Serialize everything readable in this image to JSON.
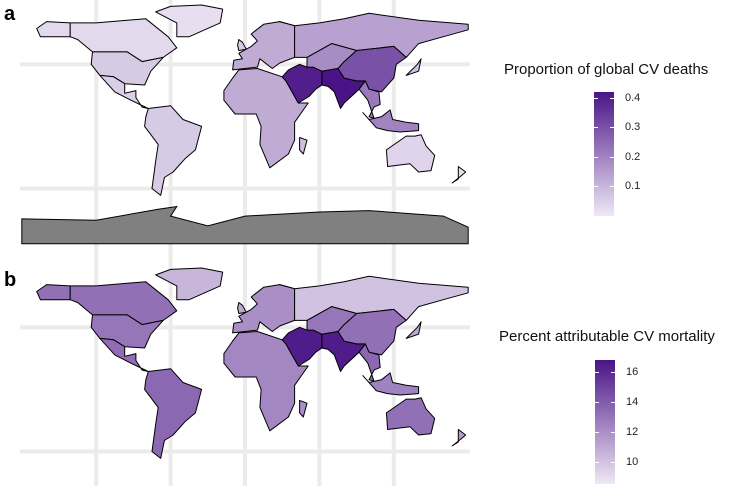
{
  "panels": [
    {
      "label": "a",
      "legend": {
        "title": "Proportion of global CV deaths",
        "ticks": [
          "0.4",
          "0.3",
          "0.2",
          "0.1"
        ],
        "tick_values": [
          0.4,
          0.3,
          0.2,
          0.1
        ],
        "range": [
          0.0,
          0.42
        ],
        "low_color": "#efe8f5",
        "high_color": "#4a1486"
      },
      "antarctica_color": "#808080",
      "region_values": {
        "canada": 0.03,
        "alaska": 0.03,
        "usa": 0.06,
        "mexico": 0.05,
        "greenland": 0.02,
        "south_america": 0.06,
        "europe": 0.12,
        "uk": 0.06,
        "russia": 0.14,
        "africa": 0.12,
        "madagascar": 0.08,
        "middle_east": 0.4,
        "central_asia": 0.18,
        "south_asia": 0.42,
        "china": 0.3,
        "se_asia": 0.22,
        "japan": 0.08,
        "indonesia": 0.2,
        "australia": 0.04,
        "new_zealand": 0.02
      }
    },
    {
      "label": "b",
      "legend": {
        "title": "Percent attributable CV mortality",
        "ticks": [
          "16",
          "14",
          "12",
          "10"
        ],
        "tick_values": [
          16,
          14,
          12,
          10
        ],
        "range": [
          8.5,
          16.8
        ],
        "low_color": "#efe8f5",
        "high_color": "#4a1486"
      },
      "region_values": {
        "canada": 13.2,
        "alaska": 13.2,
        "usa": 13.0,
        "mexico": 13.3,
        "greenland": 10.5,
        "south_america": 13.5,
        "europe": 12.0,
        "uk": 11.0,
        "russia": 10.0,
        "africa": 12.3,
        "madagascar": 12.0,
        "middle_east": 16.5,
        "central_asia": 13.0,
        "south_asia": 16.5,
        "china": 13.2,
        "se_asia": 13.5,
        "japan": 11.0,
        "indonesia": 12.5,
        "australia": 13.2,
        "new_zealand": 11.5
      }
    }
  ]
}
